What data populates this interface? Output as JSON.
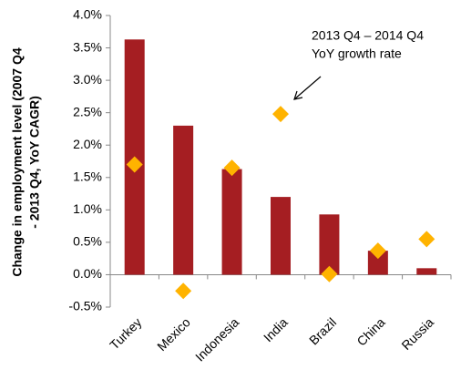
{
  "chart_data": {
    "type": "bar",
    "ylabel": [
      "Change in employment level (2007 Q4",
      "- 2013 Q4, YoY CAGR)"
    ],
    "annotation": [
      "2013 Q4 – 2014 Q4",
      "YoY growth rate"
    ],
    "categories": [
      "Turkey",
      "Mexico",
      "Indonesia",
      "India",
      "Brazil",
      "China",
      "Russia"
    ],
    "series": [
      {
        "type": "bar",
        "color": "#a51e22",
        "values": [
          3.63,
          2.3,
          1.63,
          1.2,
          0.93,
          0.37,
          0.1
        ]
      },
      {
        "type": "scatter",
        "color": "#ffb300",
        "values": [
          1.7,
          -0.25,
          1.65,
          2.48,
          0.01,
          0.37,
          0.55
        ]
      }
    ],
    "ylim": [
      -0.5,
      4.0
    ],
    "yticks": [
      {
        "value": -0.5,
        "label": "-0.5%"
      },
      {
        "value": 0,
        "label": "0.0%"
      },
      {
        "value": 0.5,
        "label": "0.5%"
      },
      {
        "value": 1,
        "label": "1.0%"
      },
      {
        "value": 1.5,
        "label": "1.5%"
      },
      {
        "value": 2,
        "label": "2.0%"
      },
      {
        "value": 2.5,
        "label": "2.5%"
      },
      {
        "value": 3,
        "label": "3.0%"
      },
      {
        "value": 3.5,
        "label": "3.5%"
      },
      {
        "value": 4,
        "label": "4.0%"
      }
    ],
    "grid": false
  }
}
